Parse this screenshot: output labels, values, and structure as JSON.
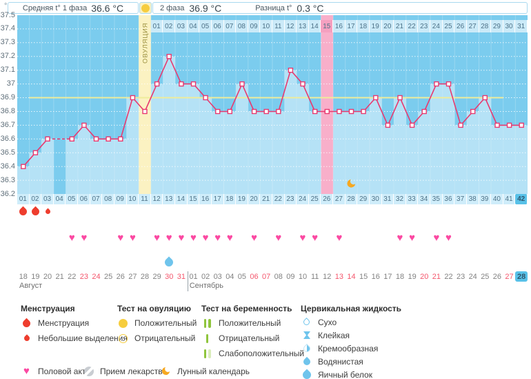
{
  "header": {
    "unit_label": "°C",
    "avg_phase1_label": "Средняя t° 1 фаза",
    "avg_phase1_value": "36.6 °C",
    "phase2_label": "2 фаза",
    "phase2_value": "36.9 °C",
    "diff_label": "Разница t°",
    "diff_value": "0.3 °C"
  },
  "colors": {
    "chart_bg": "#7BCCEE",
    "column_fill": "#B5E2F6",
    "strip_bg": "#CBEAF8",
    "day_strip_bg": "#CFEDFA",
    "ovulation_band": "#FBF2C2",
    "ovulation_text": "#9C9140",
    "pink_band": "#F8AFCA",
    "pink_cell": "#F5A0C0",
    "line": "#E8396F",
    "coverline": "#EFEC9B",
    "heart": "#FB49A2",
    "drop_red": "#EE3D2E",
    "drop_blue": "#6FC4EC",
    "moon": "#F6A821",
    "today_bg": "#58C1E8",
    "date_red": "#F4566C",
    "test_bar_green": "#8FC53C"
  },
  "chart_data": {
    "type": "line",
    "title": "",
    "ylabel": "°C",
    "ylim": [
      36.2,
      37.5
    ],
    "ytick_labels": [
      "37.5",
      "37.4",
      "37.3",
      "37.2",
      "37.1",
      "37",
      "36.9",
      "36.8",
      "36.7",
      "36.6",
      "36.5",
      "36.4",
      "36.3",
      "36.2"
    ],
    "cycle_days": [
      "01",
      "02",
      "03",
      "04",
      "05",
      "06",
      "07",
      "08",
      "09",
      "10",
      "11",
      "12",
      "13",
      "14",
      "15",
      "16",
      "17",
      "18",
      "19",
      "20",
      "21",
      "22",
      "23",
      "24",
      "25",
      "26",
      "27",
      "28",
      "29",
      "30",
      "31",
      "32",
      "33",
      "34",
      "35",
      "36",
      "37",
      "38",
      "39",
      "40",
      "41",
      "42"
    ],
    "temps": [
      36.4,
      36.5,
      36.6,
      null,
      36.6,
      36.7,
      36.6,
      36.6,
      36.6,
      36.9,
      36.8,
      37.0,
      37.2,
      37.0,
      37.0,
      36.9,
      36.8,
      36.8,
      37.0,
      36.8,
      36.8,
      36.8,
      37.1,
      37.0,
      36.8,
      36.8,
      36.8,
      36.8,
      36.8,
      36.9,
      36.7,
      36.9,
      36.7,
      36.8,
      37.0,
      37.0,
      36.7,
      36.8,
      36.9,
      36.7,
      36.7,
      36.7
    ],
    "coverline": 36.9,
    "coverline_span_days": [
      2,
      40
    ],
    "ovulation_day": 11,
    "ovulation_label": "ОВУЛЯЦИЯ",
    "dpo_labels": [
      "01",
      "02",
      "03",
      "04",
      "05",
      "06",
      "07",
      "08",
      "09",
      "10",
      "11",
      "12",
      "13",
      "14",
      "15",
      "16",
      "17",
      "18",
      "19",
      "20",
      "21",
      "22",
      "23",
      "24",
      "25",
      "26",
      "27",
      "28",
      "29",
      "30",
      "31"
    ],
    "highlighted_dpo": "15",
    "pregnancy_band_day": 26,
    "selected_cycle_day": "42",
    "moon_day": 28,
    "menstruation_days": [
      1,
      2
    ],
    "spotting_days": [
      3
    ],
    "intercourse_days": [
      5,
      6,
      9,
      10,
      12,
      13,
      14,
      15,
      16,
      17,
      18,
      20,
      22,
      24,
      25,
      27,
      32,
      33,
      35,
      36
    ],
    "cervical_fluid_days": [
      13
    ],
    "calendar": {
      "date_labels": [
        "18",
        "19",
        "20",
        "21",
        "22",
        "23",
        "24",
        "25",
        "26",
        "27",
        "28",
        "29",
        "30",
        "31",
        "01",
        "02",
        "03",
        "04",
        "05",
        "06",
        "07",
        "08",
        "09",
        "10",
        "11",
        "12",
        "13",
        "14",
        "15",
        "16",
        "17",
        "18",
        "19",
        "20",
        "21",
        "22",
        "23",
        "24",
        "25",
        "26",
        "27",
        "28"
      ],
      "red_indices": [
        5,
        6,
        12,
        13,
        19,
        20,
        26,
        27,
        33,
        34,
        40
      ],
      "today_index": 41,
      "months": [
        {
          "label": "Август",
          "start_index": 0
        },
        {
          "label": "Сентябрь",
          "start_index": 14
        }
      ]
    }
  },
  "legend": {
    "sections": [
      {
        "title": "Менструация",
        "items": [
          {
            "icon": "drop-red-large",
            "label": "Менструация"
          },
          {
            "icon": "drop-red-small",
            "label": "Небольшие выделения"
          }
        ]
      },
      {
        "title": "Тест на овуляцию",
        "items": [
          {
            "icon": "circle-yellow-filled",
            "label": "Положительный"
          },
          {
            "icon": "circle-yellow-outline",
            "label": "Отрицательный"
          }
        ]
      },
      {
        "title": "Тест на беременность",
        "items": [
          {
            "icon": "test-positive",
            "label": "Положительный"
          },
          {
            "icon": "test-negative",
            "label": "Отрицательный"
          },
          {
            "icon": "test-weak",
            "label": "Слабоположительный"
          }
        ]
      },
      {
        "title": "Цервикальная жидкость",
        "items": [
          {
            "icon": "fluid-dry",
            "label": "Сухо"
          },
          {
            "icon": "fluid-sticky",
            "label": "Клейкая"
          },
          {
            "icon": "fluid-creamy",
            "label": "Кремообразная"
          },
          {
            "icon": "fluid-watery",
            "label": "Водянистая"
          },
          {
            "icon": "fluid-eggwhite",
            "label": "Яичный белок"
          }
        ]
      }
    ],
    "footer": [
      {
        "icon": "heart",
        "label": "Половой акт"
      },
      {
        "icon": "pill",
        "label": "Прием лекарств"
      },
      {
        "icon": "moon",
        "label": "Лунный календарь"
      }
    ]
  }
}
